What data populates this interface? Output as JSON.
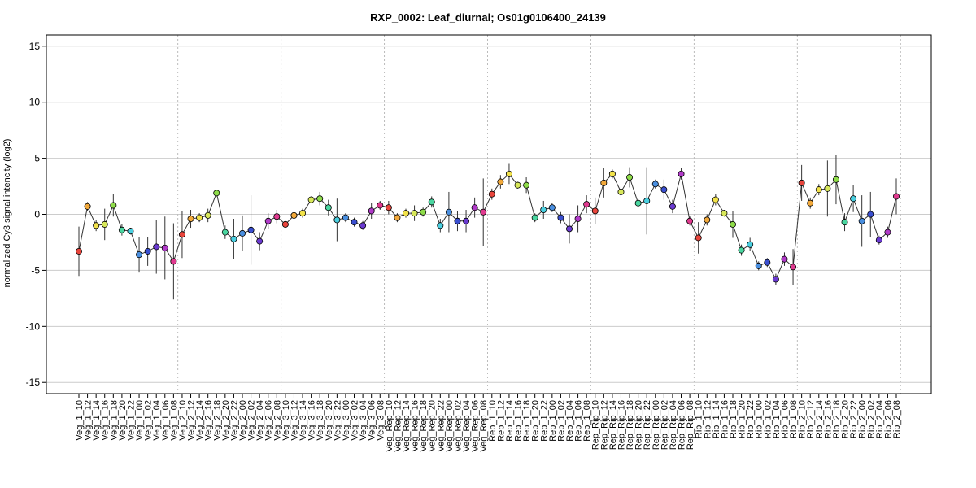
{
  "chart_data": {
    "type": "line",
    "title": "RXP_0002: Leaf_diurnal; Os01g0106400_24139",
    "ylabel": "normalized Cy3 signal intencity (log2)",
    "xlabel": "",
    "ylim": [
      -16,
      16
    ],
    "yticks": [
      -15,
      -10,
      -5,
      0,
      5,
      10,
      15
    ],
    "grid": true,
    "legend": "none",
    "group_separators_after": [
      11,
      23,
      35,
      47,
      59,
      71,
      83,
      95
    ],
    "categories": [
      "Veg_1_10",
      "Veg_1_12",
      "Veg_1_14",
      "Veg_1_16",
      "Veg_1_18",
      "Veg_1_20",
      "Veg_1_22",
      "Veg_1_00",
      "Veg_1_02",
      "Veg_1_04",
      "Veg_1_06",
      "Veg_1_08",
      "Veg_2_10",
      "Veg_2_12",
      "Veg_2_14",
      "Veg_2_16",
      "Veg_2_18",
      "Veg_2_20",
      "Veg_2_22",
      "Veg_2_00",
      "Veg_2_02",
      "Veg_2_04",
      "Veg_2_06",
      "Veg_2_08",
      "Veg_3_10",
      "Veg_3_12",
      "Veg_3_14",
      "Veg_3_16",
      "Veg_3_18",
      "Veg_3_20",
      "Veg_3_22",
      "Veg_3_00",
      "Veg_3_02",
      "Veg_3_04",
      "Veg_3_06",
      "Veg_3_08",
      "Veg_Rep_10",
      "Veg_Rep_12",
      "Veg_Rep_14",
      "Veg_Rep_16",
      "Veg_Rep_18",
      "Veg_Rep_20",
      "Veg_Rep_22",
      "Veg_Rep_00",
      "Veg_Rep_02",
      "Veg_Rep_04",
      "Veg_Rep_06",
      "Veg_Rep_08",
      "Rep_1_10",
      "Rep_1_12",
      "Rep_1_14",
      "Rep_1_16",
      "Rep_1_18",
      "Rep_1_20",
      "Rep_1_22",
      "Rep_1_00",
      "Rep_1_02",
      "Rep_1_04",
      "Rep_1_06",
      "Rep_1_08",
      "Rep_Rip_10",
      "Rep_Rip_12",
      "Rep_Rip_14",
      "Rep_Rip_16",
      "Rep_Rip_18",
      "Rep_Rip_20",
      "Rep_Rip_22",
      "Rep_Rip_00",
      "Rep_Rip_02",
      "Rep_Rip_04",
      "Rep_Rip_06",
      "Rep_Rip_08",
      "Rip_1_10",
      "Rip_1_12",
      "Rip_1_14",
      "Rip_1_16",
      "Rip_1_18",
      "Rip_1_20",
      "Rip_1_22",
      "Rip_1_00",
      "Rip_1_02",
      "Rip_1_04",
      "Rip_1_06",
      "Rip_1_08",
      "Rip_2_10",
      "Rip_2_12",
      "Rip_2_14",
      "Rip_2_16",
      "Rip_2_18",
      "Rip_2_20",
      "Rip_2_22",
      "Rip_2_00",
      "Rip_2_02",
      "Rip_2_04",
      "Rip_2_06",
      "Rip_2_08"
    ],
    "values": [
      -3.3,
      0.7,
      -1.0,
      -0.9,
      0.8,
      -1.4,
      -1.5,
      -3.6,
      -3.3,
      -2.9,
      -3.0,
      -4.2,
      -1.8,
      -0.4,
      -0.3,
      -0.1,
      1.9,
      -1.6,
      -2.2,
      -1.7,
      -1.4,
      -2.4,
      -0.6,
      -0.2,
      -0.9,
      -0.1,
      0.1,
      1.3,
      1.4,
      0.6,
      -0.5,
      -0.3,
      -0.7,
      -1.0,
      0.3,
      0.8,
      0.6,
      -0.3,
      0.1,
      0.1,
      0.2,
      1.1,
      -1.0,
      0.2,
      -0.6,
      -0.6,
      0.6,
      0.2,
      1.8,
      2.9,
      3.6,
      2.6,
      2.6,
      -0.3,
      0.4,
      0.6,
      -0.3,
      -1.3,
      -0.4,
      0.9,
      0.3,
      2.8,
      3.6,
      2.0,
      3.3,
      1.0,
      1.2,
      2.7,
      2.2,
      0.7,
      3.6,
      -0.6,
      -2.1,
      -0.5,
      1.3,
      0.1,
      -0.9,
      -3.2,
      -2.7,
      -4.6,
      -4.3,
      -5.8,
      -4.0,
      -4.7,
      2.8,
      1.0,
      2.2,
      2.3,
      3.1,
      -0.7,
      1.4,
      -0.6,
      0.0,
      -2.3,
      -1.6,
      1.6
    ],
    "errors": [
      2.2,
      0.4,
      0.5,
      1.4,
      1.0,
      0.5,
      0.3,
      1.6,
      1.3,
      2.4,
      2.8,
      3.4,
      2.1,
      0.8,
      0.4,
      0.6,
      0.3,
      0.6,
      1.8,
      1.6,
      3.1,
      0.8,
      0.7,
      0.6,
      0.3,
      0.3,
      0.4,
      0.3,
      0.6,
      0.7,
      1.9,
      0.4,
      0.4,
      0.4,
      0.7,
      0.4,
      0.6,
      0.4,
      0.4,
      0.7,
      0.4,
      0.5,
      0.6,
      1.8,
      0.9,
      1.0,
      0.9,
      3.0,
      0.5,
      0.6,
      0.9,
      0.3,
      0.7,
      0.4,
      0.8,
      0.4,
      0.5,
      1.3,
      1.2,
      0.8,
      1.2,
      1.3,
      0.4,
      0.5,
      0.9,
      0.3,
      3.0,
      0.4,
      0.9,
      0.6,
      0.5,
      0.4,
      1.4,
      0.5,
      0.5,
      0.3,
      1.2,
      0.5,
      0.6,
      0.4,
      0.4,
      0.5,
      0.6,
      1.6,
      1.6,
      0.5,
      0.5,
      2.5,
      2.2,
      0.8,
      1.2,
      2.3,
      2.0,
      0.4,
      0.5,
      1.6
    ],
    "point_colors": [
      "#e8453c",
      "#f2a93b",
      "#f2e24a",
      "#d8e85a",
      "#8fdc4a",
      "#4ad6a0",
      "#4acfe0",
      "#4a8fe0",
      "#3a4fd0",
      "#6a3ad0",
      "#b03ac8",
      "#e03a8f",
      "#e8453c",
      "#f2a93b",
      "#f2e24a",
      "#d8e85a",
      "#8fdc4a",
      "#4ad6a0",
      "#4acfe0",
      "#4a8fe0",
      "#3a4fd0",
      "#6a3ad0",
      "#b03ac8",
      "#e03a8f",
      "#e8453c",
      "#f2a93b",
      "#f2e24a",
      "#d8e85a",
      "#8fdc4a",
      "#4ad6a0",
      "#4acfe0",
      "#4a8fe0",
      "#3a4fd0",
      "#6a3ad0",
      "#b03ac8",
      "#e03a8f",
      "#e8453c",
      "#f2a93b",
      "#f2e24a",
      "#d8e85a",
      "#8fdc4a",
      "#4ad6a0",
      "#4acfe0",
      "#4a8fe0",
      "#3a4fd0",
      "#6a3ad0",
      "#b03ac8",
      "#e03a8f",
      "#e8453c",
      "#f2a93b",
      "#f2e24a",
      "#d8e85a",
      "#8fdc4a",
      "#4ad6a0",
      "#4acfe0",
      "#4a8fe0",
      "#3a4fd0",
      "#6a3ad0",
      "#b03ac8",
      "#e03a8f",
      "#e8453c",
      "#f2a93b",
      "#f2e24a",
      "#d8e85a",
      "#8fdc4a",
      "#4ad6a0",
      "#4acfe0",
      "#4a8fe0",
      "#3a4fd0",
      "#6a3ad0",
      "#b03ac8",
      "#e03a8f",
      "#e8453c",
      "#f2a93b",
      "#f2e24a",
      "#d8e85a",
      "#8fdc4a",
      "#4ad6a0",
      "#4acfe0",
      "#4a8fe0",
      "#3a4fd0",
      "#6a3ad0",
      "#b03ac8",
      "#e03a8f",
      "#e8453c",
      "#f2a93b",
      "#f2e24a",
      "#d8e85a",
      "#8fdc4a",
      "#4ad6a0",
      "#4acfe0",
      "#4a8fe0",
      "#3a4fd0",
      "#6a3ad0",
      "#b03ac8",
      "#e03a8f"
    ],
    "line_color": "#333333",
    "grid_color": "#cccccc",
    "separator_color": "#bbbbbb"
  }
}
